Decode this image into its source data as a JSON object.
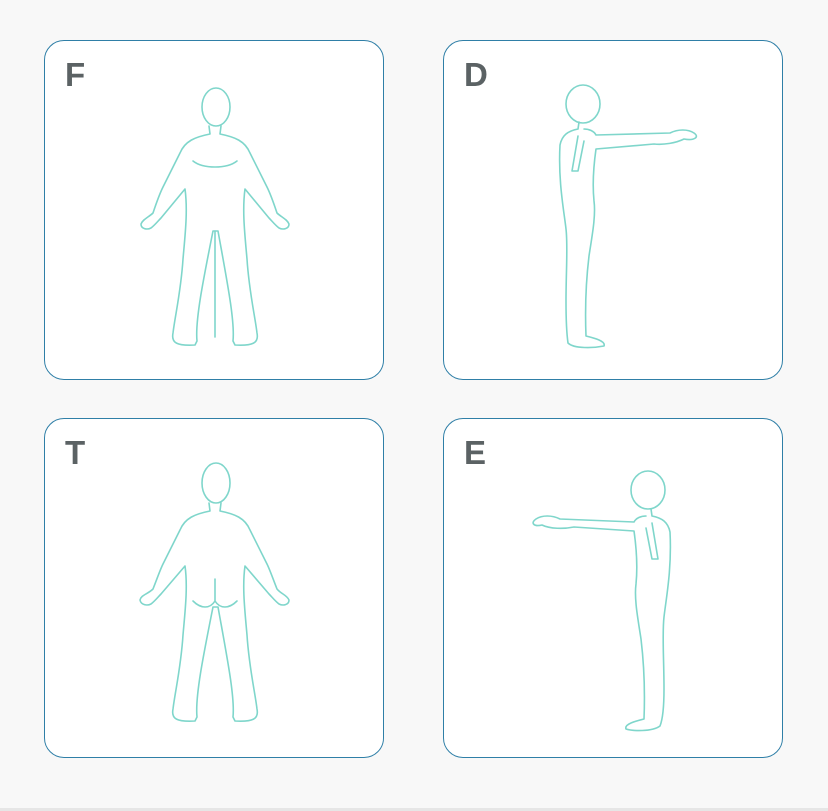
{
  "cards": [
    {
      "label": "F",
      "view": "front"
    },
    {
      "label": "D",
      "view": "right-side"
    },
    {
      "label": "T",
      "view": "back"
    },
    {
      "label": "E",
      "view": "left-side"
    }
  ],
  "colors": {
    "card_border": "#2f7fa7",
    "figure_outline": "#7fd6cb",
    "label_text": "#5b6264",
    "background": "#f8f8f8"
  }
}
